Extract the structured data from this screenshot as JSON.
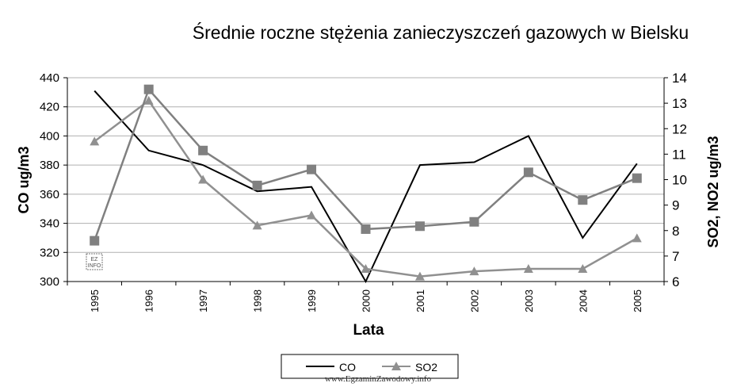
{
  "chart_data": {
    "type": "line",
    "title": "Średnie roczne stężenia zanieczyszczeń gazowych w Bielsku",
    "xlabel": "Lata",
    "ylabel": "CO ug/m3",
    "y2label": "SO2, NO2 ug/m3",
    "categories": [
      "1995",
      "1996",
      "1997",
      "1998",
      "1999",
      "2000",
      "2001",
      "2002",
      "2003",
      "2004",
      "2005"
    ],
    "ylim": [
      300,
      440
    ],
    "yticks": [
      "300",
      "320",
      "340",
      "360",
      "380",
      "400",
      "420",
      "440"
    ],
    "y2lim": [
      6,
      14
    ],
    "y2ticks": [
      "6",
      "7",
      "8",
      "9",
      "10",
      "11",
      "12",
      "13",
      "14"
    ],
    "grid": true,
    "legend_position": "bottom",
    "series": [
      {
        "name": "CO",
        "axis": "left",
        "marker": "none",
        "color": "#000000",
        "values": [
          431,
          390,
          380,
          362,
          365,
          300,
          380,
          382,
          400,
          330,
          381
        ]
      },
      {
        "name": "SO2",
        "axis": "right",
        "marker": "triangle",
        "color": "#909090",
        "values": [
          11.5,
          13.1,
          10.0,
          8.2,
          8.6,
          6.5,
          6.2,
          6.4,
          6.5,
          6.5,
          7.7
        ]
      },
      {
        "name": "",
        "axis": "left",
        "marker": "square",
        "color": "#808080",
        "values": [
          328,
          432,
          390,
          366,
          377,
          336,
          338,
          341,
          375,
          356,
          371
        ]
      }
    ],
    "annotations": [
      {
        "text": "EZ INFO"
      }
    ]
  },
  "footer": {
    "watermark": "www.EgzaminZawodowy.info"
  }
}
